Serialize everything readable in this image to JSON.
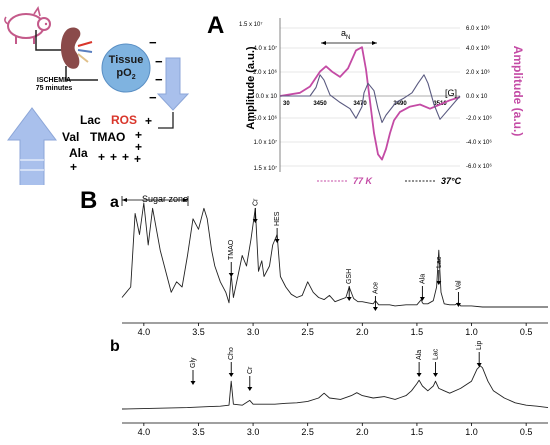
{
  "scheme": {
    "ischemia_label": "ISCHEMIA",
    "ischemia_time": "75 minutes",
    "tissue_label": "Tissue",
    "po2_label": "pO",
    "po2_sub": "2",
    "minus_signs": [
      "−",
      "−",
      "−",
      "−"
    ],
    "metabolites": [
      {
        "label": "Lac",
        "color": "#000000"
      },
      {
        "label": "ROS",
        "color": "#d9362b"
      },
      {
        "label": "Val",
        "color": "#000000"
      },
      {
        "label": "TMAO",
        "color": "#000000"
      },
      {
        "label": "Ala",
        "color": "#000000"
      }
    ],
    "plus_sign": "+",
    "colors": {
      "arrow_blue": "#a9c0ec",
      "kidney": "#8a4a4a",
      "tissue_circle": "#7fb3e0"
    }
  },
  "panel_a": {
    "panel_letter": "A",
    "ylabel_left": "Amplitude (a.u.)",
    "ylabel_right": "Amplitude (a.u.)",
    "field_label": "[G]",
    "spacing_label": "a",
    "spacing_sub": "N",
    "legend": [
      {
        "label": "77 K",
        "color": "#c44ba5",
        "style": "dashed"
      },
      {
        "label": "37°C",
        "color": "#222222",
        "style": "dashed"
      }
    ],
    "colors": {
      "k77": "#c44ba5",
      "c37": "#5a5a80"
    },
    "chart_data": {
      "type": "line",
      "xlim": [
        3430,
        3520
      ],
      "x_ticks": [
        "30",
        "3450",
        "3470",
        "3490",
        "3510"
      ],
      "y_left_ticks": [
        "4.0 x 10⁷",
        "2.0 x 10⁶",
        "0.0 x 10",
        "5.0 x 10⁶",
        "1.0 x 10⁷",
        "1.5 x 10⁷"
      ],
      "y_left_top_tick": "1.5 x 10⁷",
      "y_right_ticks": [
        "6.0 x 10⁶",
        "4.0 x 10⁶",
        "2.0 x 10⁶",
        "0.0 x 10",
        "-2.0 x 10⁶",
        "-4.0 x 10⁶",
        "-6.0 x 10⁶"
      ],
      "series": [
        {
          "name": "77 K",
          "x": [
            3430,
            3440,
            3445,
            3450,
            3453,
            3456,
            3460,
            3464,
            3468,
            3471,
            3473,
            3475,
            3477,
            3479,
            3481,
            3483,
            3485,
            3487,
            3490,
            3495,
            3500,
            3505,
            3510,
            3515,
            3520
          ],
          "y": [
            0,
            0.3,
            0.9,
            2.3,
            2.8,
            2.3,
            1.8,
            2.6,
            4.3,
            4.6,
            2.5,
            -0.5,
            -3.5,
            -5.5,
            -6.0,
            -5.0,
            -3.5,
            -2.3,
            -1.5,
            -1.0,
            -0.8,
            -1.2,
            -0.8,
            -0.4,
            -0.1
          ]
        },
        {
          "name": "37°C",
          "x": [
            3430,
            3445,
            3448,
            3450,
            3452,
            3455,
            3460,
            3465,
            3468,
            3471,
            3472,
            3474,
            3477,
            3479,
            3481,
            3483,
            3488,
            3492,
            3496,
            3499,
            3502,
            3504,
            3507,
            3510,
            3520
          ],
          "y": [
            0,
            0,
            0.8,
            2.0,
            1.5,
            0.1,
            -0.6,
            -1.2,
            -2.1,
            -1.0,
            0.3,
            1.2,
            0.5,
            -1.2,
            -2.5,
            -1.8,
            -0.6,
            -0.2,
            0.3,
            1.2,
            2.0,
            1.2,
            -0.8,
            -2.2,
            0
          ]
        }
      ]
    }
  },
  "panel_b": {
    "panel_letter": "B",
    "sub_a_letter": "a",
    "sub_b_letter": "b",
    "sugar_zone_label": "Sugar zone",
    "x_ticks": [
      "4.0",
      "3.5",
      "3.0",
      "2.5",
      "2.0",
      "1.5",
      "1.0",
      "0.5"
    ],
    "spectrum_a": {
      "type": "line",
      "xlim": [
        4.2,
        0.3
      ],
      "peak_labels": [
        {
          "label": "Cr",
          "ppm": 2.98
        },
        {
          "label": "HES",
          "ppm": 2.78
        },
        {
          "label": "TMAO",
          "ppm": 3.2
        },
        {
          "label": "GSH",
          "ppm": 2.12
        },
        {
          "label": "Ace",
          "ppm": 1.88
        },
        {
          "label": "Ala",
          "ppm": 1.45
        },
        {
          "label": "Lac",
          "ppm": 1.3
        },
        {
          "label": "Val",
          "ppm": 1.12
        }
      ],
      "x": [
        4.2,
        4.12,
        4.08,
        4.04,
        4.0,
        3.96,
        3.92,
        3.85,
        3.8,
        3.75,
        3.7,
        3.65,
        3.6,
        3.55,
        3.5,
        3.45,
        3.42,
        3.38,
        3.35,
        3.3,
        3.25,
        3.22,
        3.2,
        3.18,
        3.15,
        3.1,
        3.06,
        3.02,
        3.0,
        2.98,
        2.95,
        2.92,
        2.9,
        2.85,
        2.82,
        2.78,
        2.75,
        2.7,
        2.65,
        2.6,
        2.55,
        2.5,
        2.45,
        2.4,
        2.35,
        2.3,
        2.25,
        2.2,
        2.15,
        2.12,
        2.08,
        2.04,
        2.0,
        1.95,
        1.9,
        1.88,
        1.85,
        1.8,
        1.75,
        1.7,
        1.6,
        1.5,
        1.46,
        1.45,
        1.44,
        1.4,
        1.35,
        1.32,
        1.3,
        1.28,
        1.25,
        1.2,
        1.15,
        1.12,
        1.1,
        1.0,
        0.9,
        0.8,
        0.7,
        0.6,
        0.5,
        0.4,
        0.3
      ],
      "y": [
        0.1,
        0.2,
        0.9,
        0.7,
        1.0,
        0.6,
        0.95,
        0.55,
        0.35,
        0.15,
        0.25,
        0.2,
        0.5,
        0.85,
        0.75,
        0.95,
        0.85,
        0.55,
        0.4,
        0.25,
        0.15,
        0.05,
        0.32,
        0.1,
        0.25,
        0.5,
        0.4,
        0.65,
        0.8,
        0.95,
        0.35,
        0.45,
        0.3,
        0.4,
        0.6,
        0.7,
        0.3,
        0.2,
        0.13,
        0.1,
        0.12,
        0.25,
        0.15,
        0.1,
        0.08,
        0.12,
        0.06,
        0.08,
        0.1,
        0.2,
        0.09,
        0.06,
        0.06,
        0.05,
        0.04,
        0.07,
        0.03,
        0.03,
        0.03,
        0.02,
        0.03,
        0.03,
        0.08,
        0.05,
        0.04,
        0.04,
        0.07,
        0.2,
        0.55,
        0.15,
        0.04,
        0.03,
        0.03,
        0.05,
        0.02,
        0.02,
        0.01,
        0.01,
        0.01,
        0.01,
        0.01,
        0.01,
        0.01
      ]
    },
    "spectrum_b": {
      "type": "line",
      "xlim": [
        4.2,
        0.3
      ],
      "peak_labels": [
        {
          "label": "Gly",
          "ppm": 3.55
        },
        {
          "label": "Cho",
          "ppm": 3.2
        },
        {
          "label": "Cr",
          "ppm": 3.03
        },
        {
          "label": "Ala",
          "ppm": 1.48
        },
        {
          "label": "Lac",
          "ppm": 1.33
        },
        {
          "label": "Lip",
          "ppm": 0.93
        }
      ],
      "x": [
        4.2,
        4.0,
        3.8,
        3.6,
        3.5,
        3.4,
        3.3,
        3.22,
        3.2,
        3.18,
        3.1,
        3.03,
        3.0,
        2.9,
        2.8,
        2.7,
        2.6,
        2.5,
        2.4,
        2.35,
        2.3,
        2.2,
        2.1,
        2.05,
        2.0,
        1.9,
        1.8,
        1.7,
        1.65,
        1.6,
        1.55,
        1.5,
        1.48,
        1.45,
        1.4,
        1.35,
        1.33,
        1.3,
        1.25,
        1.2,
        1.1,
        1.0,
        0.95,
        0.92,
        0.9,
        0.85,
        0.8,
        0.7,
        0.6,
        0.5,
        0.4,
        0.3
      ],
      "y": [
        0.02,
        0.03,
        0.04,
        0.05,
        0.06,
        0.07,
        0.08,
        0.1,
        0.6,
        0.12,
        0.1,
        0.2,
        0.12,
        0.12,
        0.12,
        0.14,
        0.15,
        0.18,
        0.25,
        0.35,
        0.25,
        0.22,
        0.3,
        0.36,
        0.3,
        0.25,
        0.28,
        0.22,
        0.26,
        0.3,
        0.4,
        0.55,
        0.62,
        0.5,
        0.4,
        0.5,
        0.6,
        0.45,
        0.4,
        0.35,
        0.45,
        0.6,
        0.85,
        0.92,
        0.88,
        0.6,
        0.4,
        0.25,
        0.15,
        0.1,
        0.08,
        0.05
      ]
    }
  }
}
